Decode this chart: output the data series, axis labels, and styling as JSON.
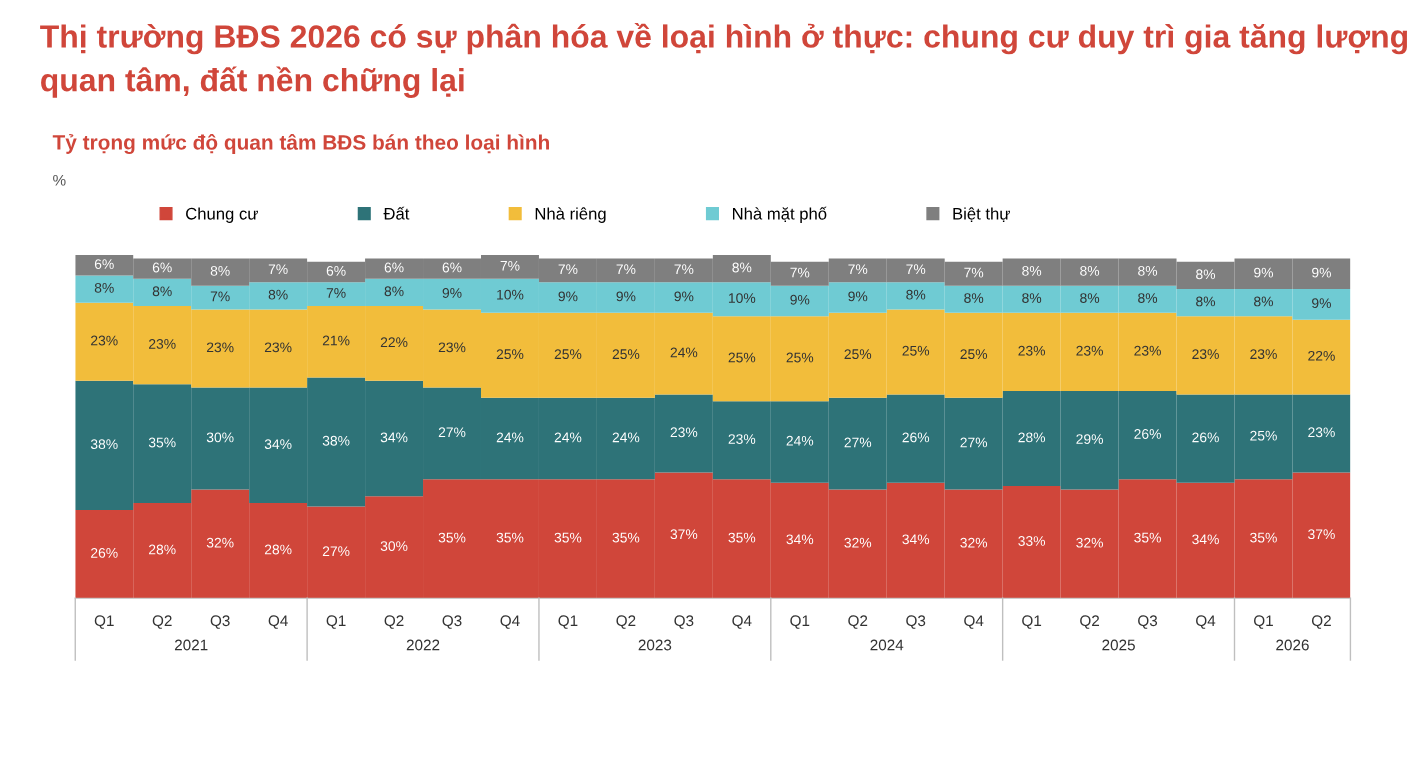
{
  "chart_data": {
    "type": "bar",
    "stacked": true,
    "legend": "top",
    "grid": false,
    "title": "Thị trường BĐS 2026 có sự phân hóa về loại hình ở thực: chung cư duy trì gia tăng lượng quan tâm, đất nền chững lại",
    "subtitle": "Tỷ trọng mức độ quan tâm BĐS bán theo loại hình",
    "ylabel": "%",
    "categories": [
      "Q1",
      "Q2",
      "Q3",
      "Q4",
      "Q1",
      "Q2",
      "Q3",
      "Q4",
      "Q1",
      "Q2",
      "Q3",
      "Q4",
      "Q1",
      "Q2",
      "Q3",
      "Q4",
      "Q1",
      "Q2",
      "Q3",
      "Q4",
      "Q1",
      "Q2"
    ],
    "annotations": [
      "2021",
      "2022",
      "2023",
      "2024",
      "2025",
      "2026"
    ],
    "series": [
      {
        "name": "Chung cư",
        "color": "#d0463a",
        "values": [
          26,
          28,
          32,
          28,
          27,
          30,
          35,
          35,
          35,
          35,
          37,
          35,
          34,
          32,
          34,
          32,
          33,
          32,
          35,
          34,
          35,
          37
        ],
        "value_labels": [
          "26%",
          "28%",
          "32%",
          "28%",
          "27%",
          "30%",
          "35%",
          "35%",
          "35%",
          "35%",
          "37%",
          "35%",
          "34%",
          "32%",
          "34%",
          "32%",
          "33%",
          "32%",
          "35%",
          "34%",
          "35%",
          "37%"
        ]
      },
      {
        "name": "Đất",
        "color": "#2e7378",
        "values": [
          38,
          35,
          30,
          34,
          38,
          34,
          27,
          24,
          24,
          24,
          23,
          23,
          24,
          27,
          26,
          27,
          28,
          29,
          26,
          26,
          25,
          23
        ],
        "value_labels": [
          "38%",
          "35%",
          "30%",
          "34%",
          "38%",
          "34%",
          "27%",
          "24%",
          "24%",
          "24%",
          "23%",
          "23%",
          "24%",
          "27%",
          "26%",
          "27%",
          "28%",
          "29%",
          "26%",
          "26%",
          "25%",
          "23%"
        ]
      },
      {
        "name": "Nhà riêng",
        "color": "#f2bd3b",
        "values": [
          23,
          23,
          23,
          23,
          21,
          22,
          23,
          25,
          25,
          25,
          24,
          25,
          25,
          25,
          25,
          25,
          23,
          23,
          23,
          23,
          23,
          22
        ],
        "value_labels": [
          "23%",
          "23%",
          "23%",
          "23%",
          "21%",
          "22%",
          "23%",
          "25%",
          "25%",
          "25%",
          "24%",
          "25%",
          "25%",
          "25%",
          "25%",
          "25%",
          "23%",
          "23%",
          "23%",
          "23%",
          "23%",
          "22%"
        ]
      },
      {
        "name": "Nhà mặt phố",
        "color": "#6fcbd3",
        "values": [
          8,
          8,
          7,
          8,
          7,
          8,
          9,
          10,
          9,
          9,
          9,
          10,
          9,
          9,
          8,
          8,
          8,
          8,
          8,
          8,
          8,
          9
        ],
        "value_labels": [
          "8%",
          "8%",
          "7%",
          "8%",
          "7%",
          "8%",
          "9%",
          "10%",
          "9%",
          "9%",
          "9%",
          "10%",
          "9%",
          "9%",
          "8%",
          "8%",
          "8%",
          "8%",
          "8%",
          "8%",
          "8%",
          "9%"
        ]
      },
      {
        "name": "Biệt thự",
        "color": "#7f7f7f",
        "values": [
          6,
          6,
          8,
          7,
          6,
          6,
          6,
          7,
          7,
          7,
          7,
          8,
          7,
          7,
          7,
          7,
          8,
          8,
          8,
          8,
          9,
          9
        ],
        "value_labels": [
          "6%",
          "6%",
          "8%",
          "7%",
          "6%",
          "6%",
          "6%",
          "7%",
          "7%",
          "7%",
          "7%",
          "8%",
          "7%",
          "7%",
          "7%",
          "7%",
          "8%",
          "8%",
          "8%",
          "8%",
          "9%",
          "9%"
        ]
      }
    ]
  }
}
